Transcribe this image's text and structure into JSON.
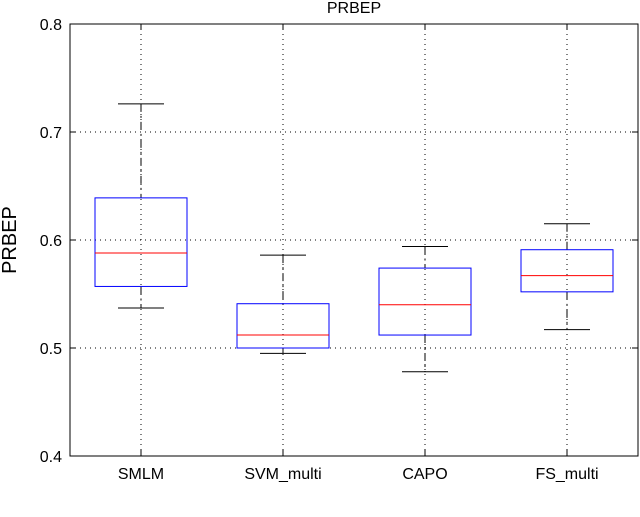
{
  "chart_data": {
    "type": "box",
    "title": "PRBEP",
    "xlabel": "",
    "ylabel": "PRBEP",
    "ylim": [
      0.4,
      0.8
    ],
    "yticks": [
      "0.4",
      "0.5",
      "0.6",
      "0.7",
      "0.8"
    ],
    "grid": true,
    "categories": [
      "SMLM",
      "SVM_multi",
      "CAPO",
      "FS_multi"
    ],
    "boxes": [
      {
        "whisker_low": 0.537,
        "q1": 0.557,
        "median": 0.588,
        "q3": 0.639,
        "whisker_high": 0.726
      },
      {
        "whisker_low": 0.495,
        "q1": 0.5,
        "median": 0.512,
        "q3": 0.541,
        "whisker_high": 0.586
      },
      {
        "whisker_low": 0.478,
        "q1": 0.512,
        "median": 0.54,
        "q3": 0.574,
        "whisker_high": 0.594
      },
      {
        "whisker_low": 0.517,
        "q1": 0.552,
        "median": 0.567,
        "q3": 0.591,
        "whisker_high": 0.615
      }
    ],
    "colors": {
      "box": "#0000ff",
      "median": "#ff0000",
      "whisker": "#000000",
      "grid": "#000000"
    }
  }
}
